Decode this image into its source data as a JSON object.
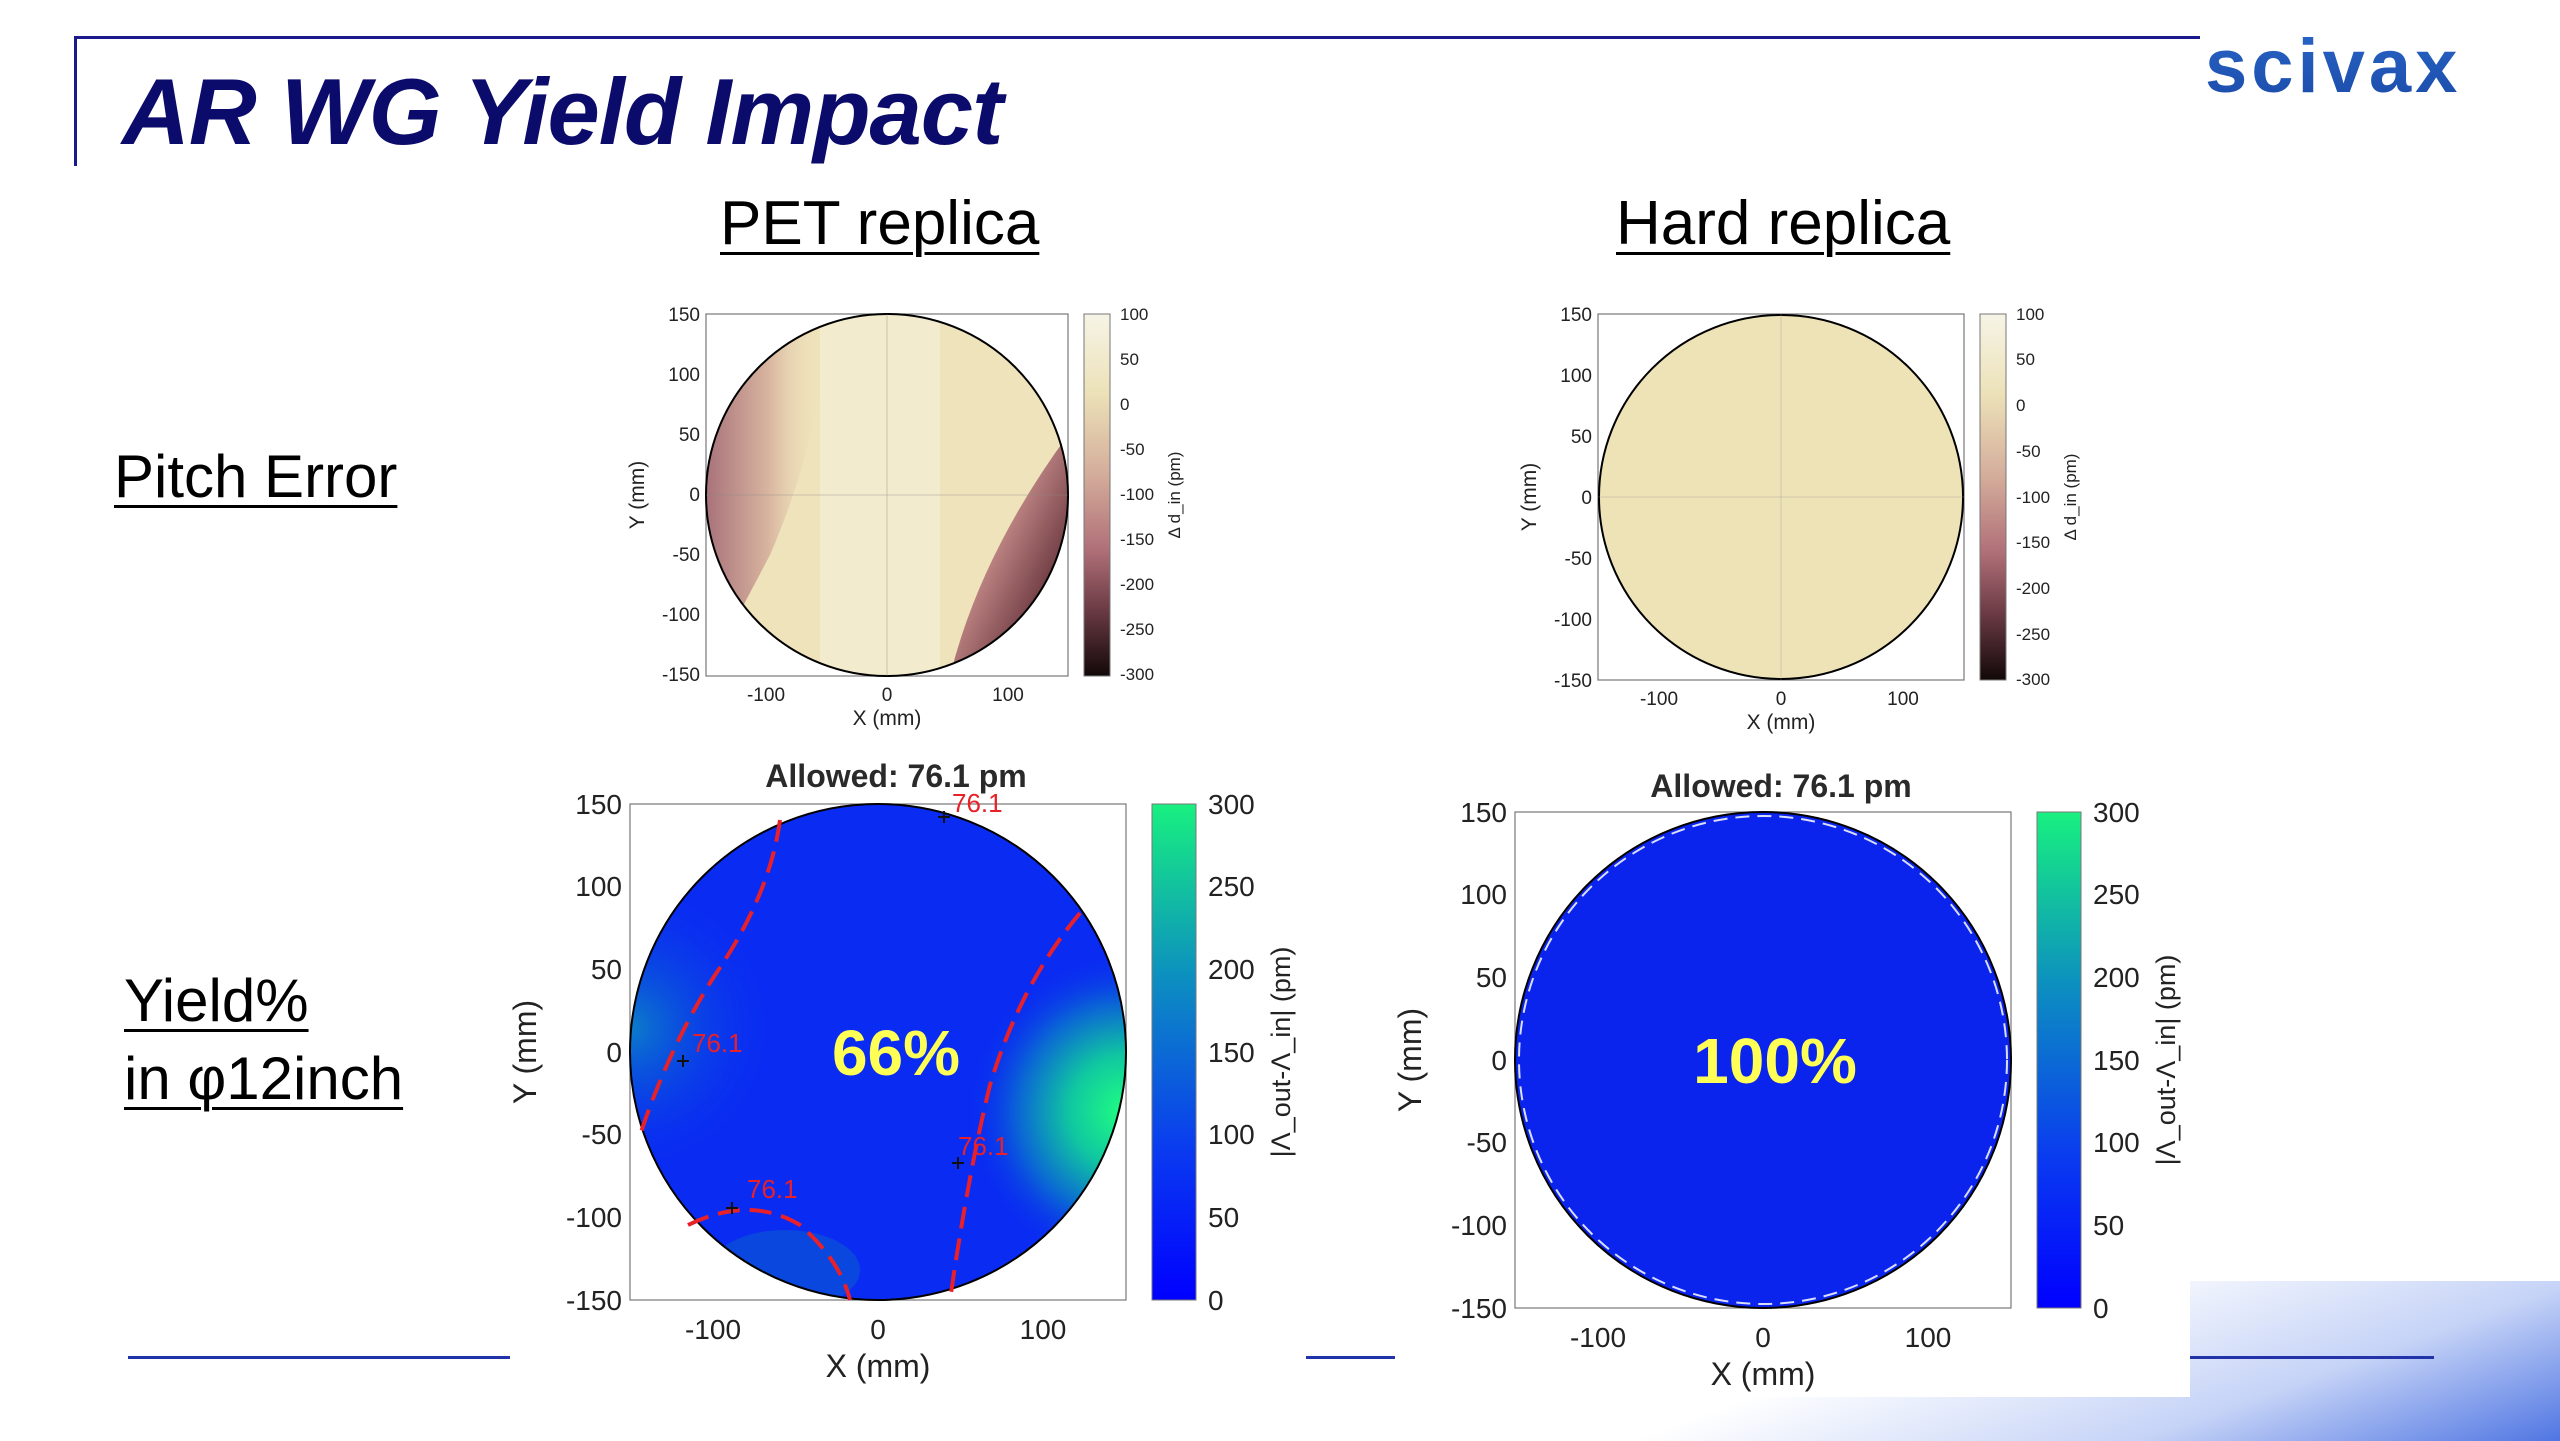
{
  "slide": {
    "title": "AR WG Yield Impact",
    "logo": "scivax"
  },
  "columns": {
    "left": "PET replica",
    "right": "Hard replica"
  },
  "rows": {
    "pitch": "Pitch Error",
    "yield_line1": "Yield%",
    "yield_line2": "in φ12inch"
  },
  "colors": {
    "title": "#0b0b6b",
    "accent_line": "#2233aa",
    "yield_text": "#ffff55",
    "contour": "#e8202a"
  },
  "pitch_plots": {
    "xlabel": "X (mm)",
    "ylabel": "Y (mm)",
    "colorbar_label": "Δ d_in (pm)",
    "x_ticks": [
      "-100",
      "0",
      "100"
    ],
    "y_ticks": [
      "150",
      "100",
      "50",
      "0",
      "-50",
      "-100",
      "-150"
    ],
    "cb_ticks": [
      "100",
      "50",
      "0",
      "-50",
      "-100",
      "-150",
      "-200",
      "-250",
      "-300"
    ]
  },
  "yield_plots": {
    "title": "Allowed: 76.1 pm",
    "xlabel": "X (mm)",
    "ylabel": "Y (mm)",
    "colorbar_label": "|Λ_out-Λ_in| (pm)",
    "x_ticks": [
      "-100",
      "0",
      "100"
    ],
    "y_ticks": [
      "150",
      "100",
      "50",
      "0",
      "-50",
      "-100",
      "-150"
    ],
    "cb_ticks": [
      "300",
      "250",
      "200",
      "150",
      "100",
      "50",
      "0"
    ],
    "contour_labels": [
      "76.1",
      "76.1",
      "76.1",
      "76.1"
    ],
    "pet_yield": "66%",
    "hard_yield": "100%"
  },
  "chart_data": [
    {
      "type": "heatmap",
      "title": "",
      "xlabel": "X (mm)",
      "ylabel": "Y (mm)",
      "xlim": [
        -150,
        150
      ],
      "ylim": [
        -150,
        150
      ],
      "colorbar_range": [
        -300,
        100
      ],
      "colorbar_label": "Δ d_in (pm)"
    },
    {
      "type": "heatmap",
      "title": "",
      "xlabel": "X (mm)",
      "ylabel": "Y (mm)",
      "xlim": [
        -150,
        150
      ],
      "ylim": [
        -150,
        150
      ],
      "colorbar_range": [
        -300,
        100
      ],
      "colorbar_label": "Δ d_in (pm)"
    },
    {
      "type": "heatmap",
      "title": "Allowed: 76.1 pm",
      "xlabel": "X (mm)",
      "ylabel": "Y (mm)",
      "xlim": [
        -150,
        150
      ],
      "ylim": [
        -150,
        150
      ],
      "colorbar_range": [
        0,
        300
      ],
      "colorbar_label": "|Λ_out-Λ_in| (pm)",
      "contour_level": 76.1,
      "annotation": "66%"
    },
    {
      "type": "heatmap",
      "title": "Allowed: 76.1 pm",
      "xlabel": "X (mm)",
      "ylabel": "Y (mm)",
      "xlim": [
        -150,
        150
      ],
      "ylim": [
        -150,
        150
      ],
      "colorbar_range": [
        0,
        300
      ],
      "colorbar_label": "|Λ_out-Λ_in| (pm)",
      "contour_level": 76.1,
      "annotation": "100%"
    }
  ]
}
